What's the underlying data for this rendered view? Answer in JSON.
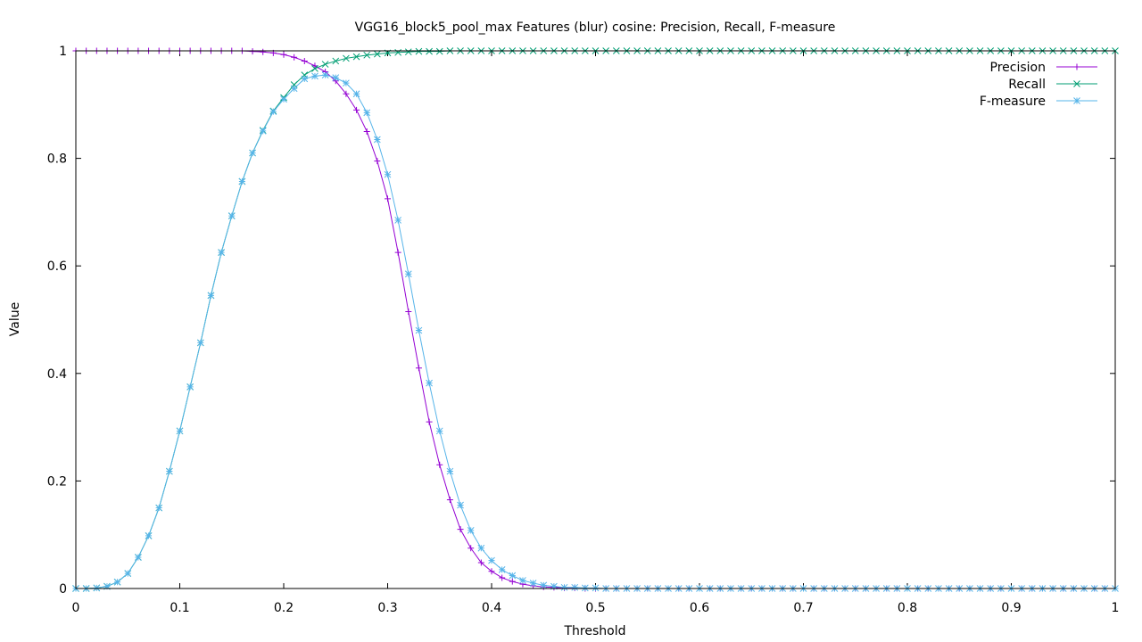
{
  "chart_data": {
    "type": "line",
    "title": "VGG16_block5_pool_max Features (blur) cosine: Precision, Recall, F-measure",
    "xlabel": "Threshold",
    "ylabel": "Value",
    "xlim": [
      0,
      1
    ],
    "ylim": [
      0,
      1
    ],
    "xticks": [
      "0",
      "0.1",
      "0.2",
      "0.3",
      "0.4",
      "0.5",
      "0.6",
      "0.7",
      "0.8",
      "0.9",
      "1"
    ],
    "yticks": [
      "0",
      "0.2",
      "0.4",
      "0.6",
      "0.8",
      "1"
    ],
    "grid": false,
    "legend_position": "top-right",
    "x": [
      0,
      0.01,
      0.02,
      0.03,
      0.04,
      0.05,
      0.06,
      0.07,
      0.08,
      0.09,
      0.1,
      0.11,
      0.12,
      0.13,
      0.14,
      0.15,
      0.16,
      0.17,
      0.18,
      0.19,
      0.2,
      0.21,
      0.22,
      0.23,
      0.24,
      0.25,
      0.26,
      0.27,
      0.28,
      0.29,
      0.3,
      0.31,
      0.32,
      0.33,
      0.34,
      0.35,
      0.36,
      0.37,
      0.38,
      0.39,
      0.4,
      0.41,
      0.42,
      0.43,
      0.44,
      0.45,
      0.46,
      0.47,
      0.48,
      0.49,
      0.5,
      0.51,
      0.52,
      0.53,
      0.54,
      0.55,
      0.56,
      0.57,
      0.58,
      0.59,
      0.6,
      0.61,
      0.62,
      0.63,
      0.64,
      0.65,
      0.66,
      0.67,
      0.68,
      0.69,
      0.7,
      0.71,
      0.72,
      0.73,
      0.74,
      0.75,
      0.76,
      0.77,
      0.78,
      0.79,
      0.8,
      0.81,
      0.82,
      0.83,
      0.84,
      0.85,
      0.86,
      0.87,
      0.88,
      0.89,
      0.9,
      0.91,
      0.92,
      0.93,
      0.94,
      0.95,
      0.96,
      0.97,
      0.98,
      0.99,
      1
    ],
    "series": [
      {
        "name": "Precision",
        "color": "#9400d3",
        "marker": "plus",
        "values": [
          1,
          1,
          1,
          1,
          1,
          1,
          1,
          1,
          1,
          1,
          1,
          1,
          1,
          1,
          1,
          1,
          1,
          0.999,
          0.998,
          0.996,
          0.993,
          0.988,
          0.981,
          0.972,
          0.961,
          0.944,
          0.92,
          0.89,
          0.85,
          0.795,
          0.725,
          0.625,
          0.515,
          0.41,
          0.31,
          0.23,
          0.165,
          0.11,
          0.075,
          0.048,
          0.032,
          0.02,
          0.013,
          0.008,
          0.005,
          0.003,
          0.002,
          0.001,
          0.001,
          0,
          0,
          0,
          0,
          0,
          0,
          0,
          0,
          0,
          0,
          0,
          0,
          0,
          0,
          0,
          0,
          0,
          0,
          0,
          0,
          0,
          0,
          0,
          0,
          0,
          0,
          0,
          0,
          0,
          0,
          0,
          0,
          0,
          0,
          0,
          0,
          0,
          0,
          0,
          0,
          0,
          0,
          0,
          0,
          0,
          0,
          0,
          0,
          0,
          0,
          0,
          0
        ]
      },
      {
        "name": "Recall",
        "color": "#009e73",
        "marker": "cross",
        "values": [
          0,
          0,
          0.001,
          0.004,
          0.012,
          0.028,
          0.058,
          0.098,
          0.15,
          0.218,
          0.293,
          0.375,
          0.457,
          0.545,
          0.625,
          0.693,
          0.757,
          0.81,
          0.852,
          0.888,
          0.913,
          0.937,
          0.955,
          0.967,
          0.975,
          0.981,
          0.986,
          0.989,
          0.992,
          0.994,
          0.996,
          0.997,
          0.998,
          0.999,
          0.999,
          0.999,
          1,
          1,
          1,
          1,
          1,
          1,
          1,
          1,
          1,
          1,
          1,
          1,
          1,
          1,
          1,
          1,
          1,
          1,
          1,
          1,
          1,
          1,
          1,
          1,
          1,
          1,
          1,
          1,
          1,
          1,
          1,
          1,
          1,
          1,
          1,
          1,
          1,
          1,
          1,
          1,
          1,
          1,
          1,
          1,
          1,
          1,
          1,
          1,
          1,
          1,
          1,
          1,
          1,
          1,
          1,
          1,
          1,
          1,
          1,
          1,
          1,
          1,
          1,
          1,
          1
        ]
      },
      {
        "name": "F-measure",
        "color": "#56b4e9",
        "marker": "star",
        "values": [
          0,
          0,
          0.001,
          0.004,
          0.012,
          0.028,
          0.058,
          0.098,
          0.15,
          0.218,
          0.293,
          0.375,
          0.457,
          0.545,
          0.625,
          0.693,
          0.757,
          0.81,
          0.851,
          0.887,
          0.91,
          0.93,
          0.948,
          0.953,
          0.955,
          0.95,
          0.94,
          0.92,
          0.885,
          0.835,
          0.77,
          0.685,
          0.585,
          0.48,
          0.382,
          0.293,
          0.218,
          0.155,
          0.108,
          0.075,
          0.052,
          0.035,
          0.024,
          0.015,
          0.01,
          0.006,
          0.004,
          0.002,
          0.002,
          0.001,
          0.001,
          0,
          0,
          0,
          0,
          0,
          0,
          0,
          0,
          0,
          0,
          0,
          0,
          0,
          0,
          0,
          0,
          0,
          0,
          0,
          0,
          0,
          0,
          0,
          0,
          0,
          0,
          0,
          0,
          0,
          0,
          0,
          0,
          0,
          0,
          0,
          0,
          0,
          0,
          0,
          0,
          0,
          0,
          0,
          0,
          0,
          0,
          0,
          0,
          0,
          0
        ]
      }
    ]
  }
}
